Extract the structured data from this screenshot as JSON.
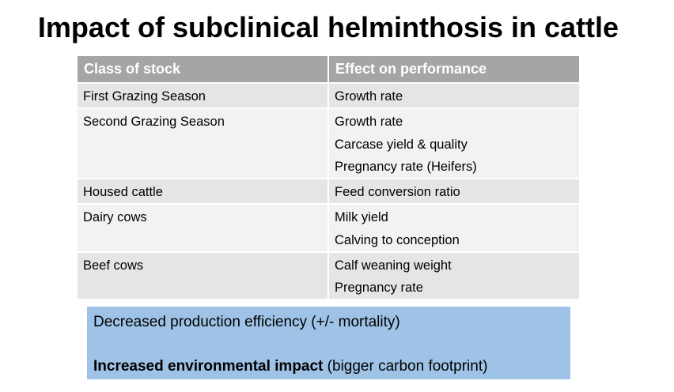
{
  "slide": {
    "title": "Impact of subclinical helminthosis in cattle"
  },
  "table": {
    "headers": [
      "Class of stock",
      "Effect on performance"
    ],
    "rows": [
      {
        "class": "First Grazing Season",
        "effects": [
          "Growth rate"
        ]
      },
      {
        "class": "Second Grazing Season",
        "effects": [
          "Growth rate",
          "Carcase yield & quality",
          "Pregnancy rate (Heifers)"
        ]
      },
      {
        "class": "Housed cattle",
        "effects": [
          "Feed conversion ratio"
        ]
      },
      {
        "class": "Dairy cows",
        "effects": [
          "Milk yield",
          "Calving to conception"
        ]
      },
      {
        "class": "Beef cows",
        "effects": [
          "Calf weaning weight",
          "Pregnancy rate"
        ]
      }
    ]
  },
  "summary": {
    "line1": "Decreased production efficiency (+/- mortality)",
    "line2_bold": "Increased environmental impact",
    "line2_rest": " (bigger carbon footprint)"
  },
  "colors": {
    "header_bg": "#a5a5a5",
    "row_odd_bg": "#e5e5e5",
    "row_even_bg": "#f2f2f2",
    "summary_bg": "#9ec3e6"
  }
}
